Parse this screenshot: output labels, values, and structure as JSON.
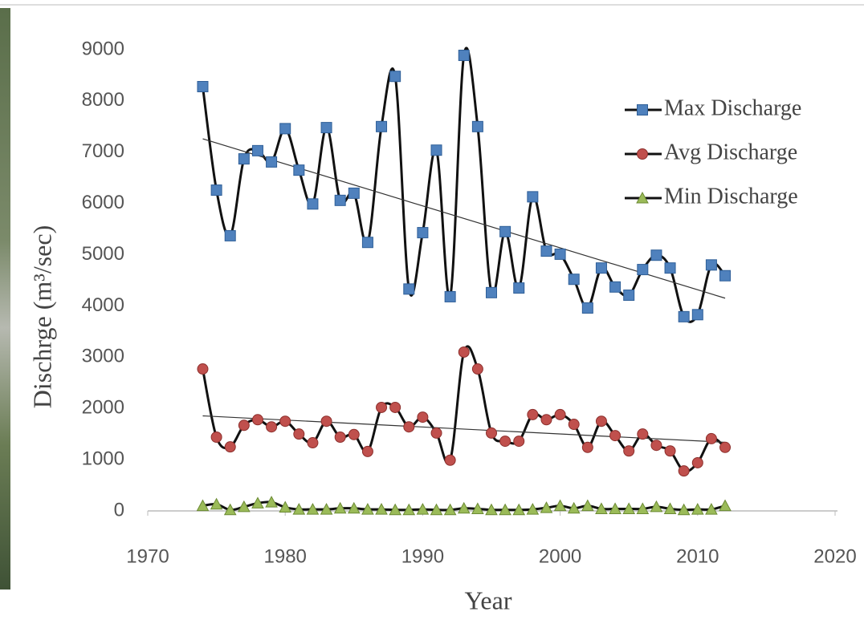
{
  "chart_data": {
    "type": "line",
    "x_label": "Year",
    "y_label": "Dischrge (m³/sec)",
    "x": [
      1974,
      1975,
      1976,
      1977,
      1978,
      1979,
      1980,
      1981,
      1982,
      1983,
      1984,
      1985,
      1986,
      1987,
      1988,
      1989,
      1990,
      1991,
      1992,
      1993,
      1994,
      1995,
      1996,
      1997,
      1998,
      1999,
      2000,
      2001,
      2002,
      2003,
      2004,
      2005,
      2006,
      2007,
      2008,
      2009,
      2010,
      2011,
      2012
    ],
    "series": [
      {
        "name": "Max Discharge",
        "color": "#4f81bd",
        "marker": "square",
        "trendline": true,
        "values": [
          8280,
          6260,
          5370,
          6870,
          7030,
          6810,
          7460,
          6650,
          5990,
          7480,
          6060,
          6200,
          5240,
          7500,
          8480,
          4330,
          5430,
          7040,
          4180,
          8890,
          7500,
          4260,
          5450,
          4350,
          6130,
          5070,
          5010,
          4520,
          3960,
          4740,
          4370,
          4210,
          4710,
          4990,
          4740,
          3790,
          3830,
          4800,
          4590
        ]
      },
      {
        "name": "Avg Discharge",
        "color": "#c0504d",
        "marker": "circle",
        "trendline": true,
        "values": [
          2770,
          1440,
          1250,
          1670,
          1780,
          1640,
          1750,
          1500,
          1330,
          1750,
          1440,
          1490,
          1160,
          2020,
          2020,
          1640,
          1830,
          1520,
          990,
          3100,
          2770,
          1520,
          1360,
          1360,
          1880,
          1780,
          1880,
          1690,
          1240,
          1750,
          1470,
          1170,
          1500,
          1280,
          1170,
          780,
          940,
          1410,
          1240
        ]
      },
      {
        "name": "Min Discharge",
        "color": "#9bbb59",
        "marker": "triangle",
        "trendline": false,
        "values": [
          100,
          130,
          20,
          80,
          150,
          170,
          70,
          30,
          30,
          30,
          50,
          50,
          30,
          30,
          20,
          20,
          30,
          20,
          20,
          50,
          40,
          20,
          20,
          20,
          30,
          60,
          100,
          50,
          100,
          40,
          40,
          40,
          40,
          80,
          40,
          20,
          30,
          30,
          100
        ]
      }
    ],
    "xlim": [
      1970,
      2020
    ],
    "xticks": [
      1970,
      1980,
      1990,
      2000,
      2010,
      2020
    ],
    "ylim": [
      0,
      9000
    ],
    "yticks": [
      0,
      1000,
      2000,
      3000,
      4000,
      5000,
      6000,
      7000,
      8000,
      9000
    ],
    "legend": "upper right"
  }
}
